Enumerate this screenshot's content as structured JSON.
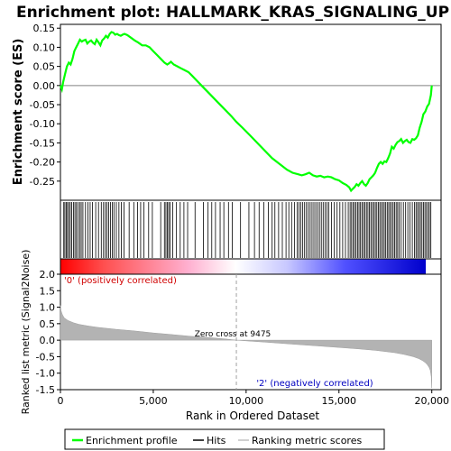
{
  "chart_data": [
    {
      "type": "line",
      "panel": "enrichment",
      "title": "Enrichment plot: HALLMARK_KRAS_SIGNALING_UP",
      "ylabel": "Enrichment score (ES)",
      "ylim": [
        -0.3,
        0.16
      ],
      "xlim": [
        0,
        20500
      ],
      "y_ticks": [
        0.15,
        0.1,
        0.05,
        0.0,
        -0.05,
        -0.1,
        -0.15,
        -0.2,
        -0.25
      ],
      "y_tick_labels": [
        "0.15",
        "0.10",
        "0.05",
        "0.00",
        "-0.05",
        "-0.10",
        "-0.15",
        "-0.20",
        "-0.25"
      ],
      "series": [
        {
          "name": "Enrichment profile",
          "color": "#00ff00",
          "x": [
            0,
            80,
            150,
            250,
            350,
            450,
            550,
            650,
            750,
            850,
            950,
            1050,
            1150,
            1250,
            1350,
            1450,
            1550,
            1650,
            1750,
            1850,
            1950,
            2050,
            2150,
            2250,
            2350,
            2450,
            2550,
            2650,
            2750,
            2850,
            2950,
            3050,
            3150,
            3250,
            3350,
            3450,
            3600,
            3800,
            4000,
            4200,
            4400,
            4600,
            4800,
            5000,
            5200,
            5400,
            5600,
            5750,
            5850,
            5950,
            6100,
            6300,
            6500,
            6700,
            6900,
            7100,
            7300,
            7600,
            8000,
            8400,
            8800,
            9200,
            9475,
            9800,
            10200,
            10600,
            11000,
            11400,
            11800,
            12200,
            12500,
            12800,
            13000,
            13200,
            13400,
            13600,
            13800,
            14000,
            14200,
            14400,
            14600,
            14800,
            15000,
            15200,
            15400,
            15550,
            15650,
            15750,
            15850,
            15950,
            16050,
            16150,
            16250,
            16350,
            16450,
            16550,
            16650,
            16750,
            16850,
            16950,
            17050,
            17150,
            17250,
            17350,
            17450,
            17550,
            17650,
            17750,
            17850,
            17950,
            18050,
            18150,
            18250,
            18350,
            18450,
            18550,
            18650,
            18750,
            18850,
            18950,
            19050,
            19150,
            19250,
            19350,
            19450,
            19550,
            19650,
            19750,
            19850,
            19950,
            20000
          ],
          "y": [
            0.0,
            -0.01,
            0.01,
            0.03,
            0.05,
            0.06,
            0.055,
            0.07,
            0.09,
            0.1,
            0.11,
            0.12,
            0.115,
            0.118,
            0.12,
            0.11,
            0.115,
            0.118,
            0.112,
            0.108,
            0.12,
            0.113,
            0.105,
            0.118,
            0.123,
            0.13,
            0.125,
            0.135,
            0.14,
            0.138,
            0.133,
            0.135,
            0.132,
            0.13,
            0.133,
            0.135,
            0.132,
            0.125,
            0.118,
            0.112,
            0.105,
            0.105,
            0.1,
            0.09,
            0.08,
            0.07,
            0.06,
            0.055,
            0.058,
            0.062,
            0.055,
            0.05,
            0.045,
            0.04,
            0.035,
            0.025,
            0.015,
            0.0,
            -0.02,
            -0.04,
            -0.06,
            -0.08,
            -0.095,
            -0.11,
            -0.13,
            -0.15,
            -0.17,
            -0.19,
            -0.205,
            -0.22,
            -0.228,
            -0.232,
            -0.235,
            -0.232,
            -0.228,
            -0.235,
            -0.238,
            -0.236,
            -0.24,
            -0.238,
            -0.24,
            -0.245,
            -0.248,
            -0.255,
            -0.26,
            -0.266,
            -0.275,
            -0.27,
            -0.265,
            -0.258,
            -0.262,
            -0.255,
            -0.25,
            -0.258,
            -0.262,
            -0.255,
            -0.245,
            -0.24,
            -0.235,
            -0.228,
            -0.215,
            -0.205,
            -0.2,
            -0.205,
            -0.198,
            -0.2,
            -0.19,
            -0.178,
            -0.16,
            -0.165,
            -0.155,
            -0.148,
            -0.145,
            -0.14,
            -0.15,
            -0.145,
            -0.142,
            -0.148,
            -0.15,
            -0.14,
            -0.142,
            -0.138,
            -0.13,
            -0.11,
            -0.095,
            -0.075,
            -0.068,
            -0.055,
            -0.048,
            -0.025,
            0.0
          ]
        }
      ],
      "zero_line": true
    },
    {
      "type": "heatmap",
      "panel": "hits",
      "hit_color": "#000000",
      "gene_set_hit_ranks": [
        180,
        240,
        310,
        380,
        450,
        530,
        610,
        700,
        780,
        860,
        950,
        1040,
        1120,
        1210,
        1350,
        1480,
        1600,
        1720,
        1900,
        2050,
        2200,
        2320,
        2420,
        2510,
        2600,
        2700,
        2790,
        2880,
        3010,
        3150,
        3280,
        3420,
        3700,
        3950,
        4150,
        4320,
        4500,
        4750,
        4950,
        5400,
        5600,
        5680,
        5760,
        5830,
        5900,
        6050,
        6250,
        6450,
        6650,
        6850,
        7250,
        7700,
        7950,
        8150,
        8350,
        8600,
        8800,
        9050,
        9250,
        9700,
        10150,
        10450,
        10700,
        10950,
        11200,
        11400,
        11550,
        11750,
        11950,
        12150,
        12300,
        12450,
        12600,
        12750,
        12850,
        12950,
        13050,
        13150,
        13250,
        13350,
        13450,
        13550,
        13650,
        13750,
        13850,
        13950,
        14050,
        14150,
        14250,
        14350,
        14450,
        14600,
        14750,
        14900,
        15050,
        15200,
        15350,
        15500,
        15600,
        15680,
        15760,
        15840,
        15920,
        16000,
        16080,
        16160,
        16240,
        16320,
        16400,
        16480,
        16560,
        16640,
        16720,
        16800,
        16880,
        16960,
        17040,
        17120,
        17200,
        17280,
        17360,
        17440,
        17520,
        17600,
        17680,
        17760,
        17840,
        17920,
        18000,
        18080,
        18160,
        18240,
        18350,
        18470,
        18590,
        18710,
        18830,
        18950,
        19070,
        19150,
        19230,
        19310,
        19390,
        19470,
        19550,
        19630,
        19710,
        19790,
        19870,
        19950
      ]
    },
    {
      "type": "area",
      "panel": "ranked_list_metric",
      "xlabel": "Rank in Ordered Dataset",
      "ylabel": "Ranked list metric (Signal2Noise)",
      "xlim": [
        0,
        20500
      ],
      "ylim": [
        -1.5,
        2.0
      ],
      "x_ticks": [
        0,
        5000,
        10000,
        15000,
        20000
      ],
      "x_tick_labels": [
        "0",
        "5,000",
        "10,000",
        "15,000",
        "20,000"
      ],
      "y_ticks": [
        2.0,
        1.5,
        1.0,
        0.5,
        0.0,
        -0.5,
        -1.0,
        -1.5
      ],
      "y_tick_labels": [
        "2.0",
        "1.5",
        "1.0",
        "0.5",
        "0.0",
        "-0.5",
        "-1.0",
        "-1.5"
      ],
      "fill_color": "#b3b3b3",
      "x": [
        0,
        30,
        100,
        200,
        400,
        700,
        1000,
        1500,
        2000,
        3000,
        4000,
        5000,
        6000,
        7000,
        8000,
        9000,
        9475,
        10000,
        11000,
        12000,
        13000,
        14000,
        15000,
        16000,
        17000,
        18000,
        18500,
        19000,
        19300,
        19500,
        19650,
        19750,
        19850,
        19920,
        19970,
        20000
      ],
      "values": [
        1.05,
        0.9,
        0.78,
        0.68,
        0.6,
        0.53,
        0.48,
        0.43,
        0.39,
        0.33,
        0.28,
        0.22,
        0.17,
        0.12,
        0.08,
        0.03,
        0.0,
        -0.02,
        -0.06,
        -0.1,
        -0.14,
        -0.18,
        -0.22,
        -0.26,
        -0.31,
        -0.38,
        -0.43,
        -0.5,
        -0.56,
        -0.62,
        -0.68,
        -0.74,
        -0.82,
        -0.92,
        -1.1,
        -1.45
      ],
      "zero_cross_rank": 9475,
      "annotations": {
        "zero_cross": "Zero cross at 9475",
        "positive": "'0' (positively correlated)",
        "negative": "'2' (negatively correlated)"
      },
      "color_bar": {
        "start_color": "#ff0000",
        "mid_color": "#ffffff",
        "end_color": "#0000ff"
      }
    }
  ],
  "legend": {
    "items": [
      {
        "label": "Enrichment profile",
        "color": "#00ff00"
      },
      {
        "label": "Hits",
        "color": "#000000"
      },
      {
        "label": "Ranking metric scores",
        "color": "#c0c0c0"
      }
    ]
  }
}
